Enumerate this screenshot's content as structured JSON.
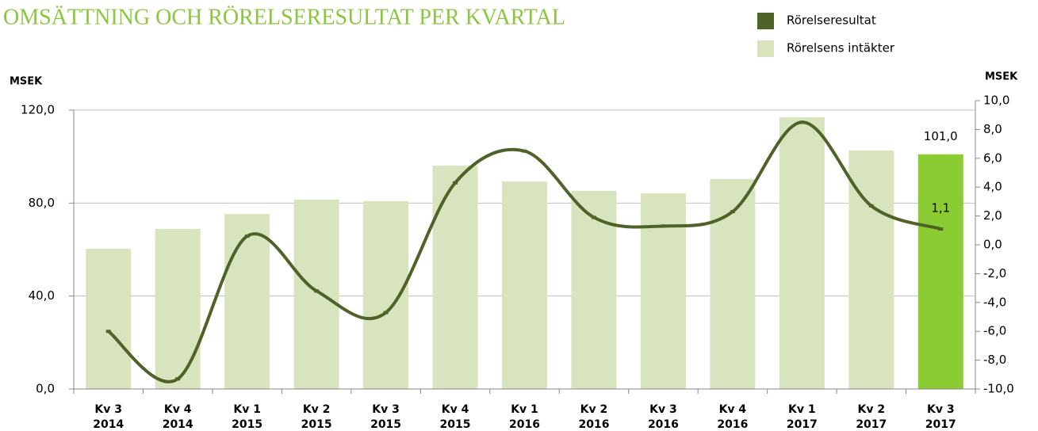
{
  "chart_data": {
    "type": "bar_line",
    "title": "OMSÄTTNING OCH RÖRELSERESULTAT PER KVARTAL",
    "ylabel": "MSEK",
    "y2label": "MSEK",
    "categories": [
      [
        "Kv 3",
        "2014"
      ],
      [
        "Kv 4",
        "2014"
      ],
      [
        "Kv 1",
        "2015"
      ],
      [
        "Kv 2",
        "2015"
      ],
      [
        "Kv 3",
        "2015"
      ],
      [
        "Kv 4",
        "2015"
      ],
      [
        "Kv 1",
        "2016"
      ],
      [
        "Kv 2",
        "2016"
      ],
      [
        "Kv 3",
        "2016"
      ],
      [
        "Kv 4",
        "2016"
      ],
      [
        "Kv 1",
        "2017"
      ],
      [
        "Kv 2",
        "2017"
      ],
      [
        "Kv 3",
        "2017"
      ]
    ],
    "series": [
      {
        "name": "Rörelseresultat",
        "type": "line",
        "axis": "y2",
        "color": "#4f6228",
        "values": [
          -6.0,
          -9.3,
          0.6,
          -3.2,
          -4.7,
          4.3,
          6.5,
          1.9,
          1.3,
          2.3,
          8.5,
          2.7,
          1.1
        ],
        "value_labels": [
          null,
          null,
          null,
          null,
          null,
          null,
          null,
          null,
          null,
          null,
          null,
          null,
          "1,1"
        ]
      },
      {
        "name": "Rörelsens intäkter",
        "type": "bar",
        "axis": "y",
        "color": "#d7e4bd",
        "colors": [
          "#d7e4bd",
          "#d7e4bd",
          "#d7e4bd",
          "#d7e4bd",
          "#d7e4bd",
          "#d7e4bd",
          "#d7e4bd",
          "#d7e4bd",
          "#d7e4bd",
          "#d7e4bd",
          "#d7e4bd",
          "#d7e4bd",
          "#8acc32"
        ],
        "values": [
          60.3,
          68.9,
          75.3,
          81.5,
          80.8,
          96.1,
          89.3,
          85.2,
          84.2,
          90.3,
          116.9,
          102.6,
          101.0
        ],
        "value_labels": [
          null,
          null,
          null,
          null,
          null,
          null,
          null,
          null,
          null,
          null,
          null,
          null,
          "101,0"
        ]
      }
    ],
    "ylim": [
      0,
      120
    ],
    "yticks": [
      {
        "value": 0,
        "label": "0,0"
      },
      {
        "value": 40,
        "label": "40,0"
      },
      {
        "value": 80,
        "label": "80,0"
      },
      {
        "value": 120,
        "label": "120,0"
      }
    ],
    "y2lim": [
      -10,
      10
    ],
    "y2ticks": [
      {
        "value": -10,
        "label": "-10,0"
      },
      {
        "value": -8,
        "label": "-8,0"
      },
      {
        "value": -6,
        "label": "-6,0"
      },
      {
        "value": -4,
        "label": "-4,0"
      },
      {
        "value": -2,
        "label": "-2,0"
      },
      {
        "value": 0,
        "label": "0,0"
      },
      {
        "value": 2,
        "label": "2,0"
      },
      {
        "value": 4,
        "label": "4,0"
      },
      {
        "value": 6,
        "label": "6,0"
      },
      {
        "value": 8,
        "label": "8,0"
      },
      {
        "value": 10,
        "label": "10,0"
      }
    ],
    "grid": true
  }
}
